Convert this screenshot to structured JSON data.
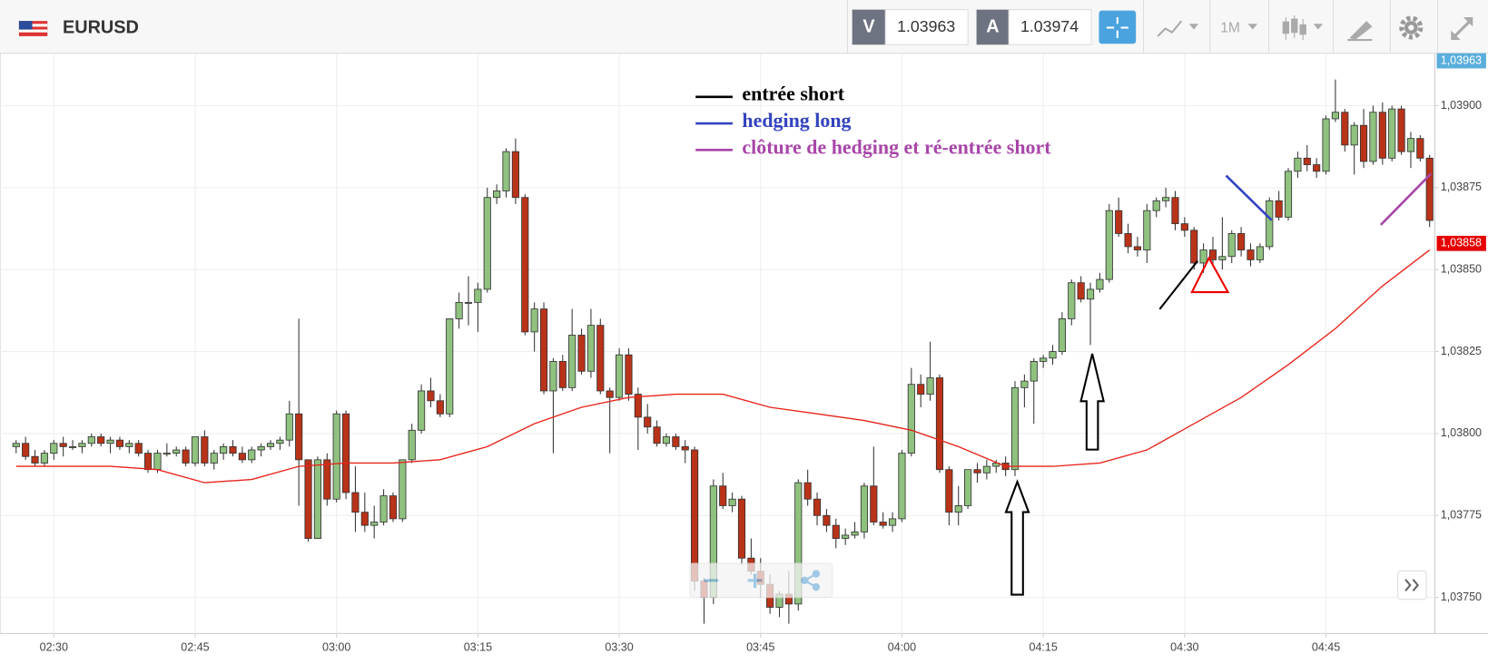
{
  "toolbar": {
    "symbol": "EURUSD",
    "sell_label": "V",
    "sell_price": "1.03963",
    "buy_label": "A",
    "buy_price": "1.03974",
    "timeframe": "1M"
  },
  "chart_data": {
    "type": "candlestick",
    "up_color": "#8fc17f",
    "down_color": "#b93319",
    "categories": [
      "02:26",
      "02:27",
      "02:28",
      "02:29",
      "02:30",
      "02:31",
      "02:32",
      "02:33",
      "02:34",
      "02:35",
      "02:36",
      "02:37",
      "02:38",
      "02:39",
      "02:40",
      "02:41",
      "02:42",
      "02:43",
      "02:44",
      "02:45",
      "02:46",
      "02:47",
      "02:48",
      "02:49",
      "02:50",
      "02:51",
      "02:52",
      "02:53",
      "02:54",
      "02:55",
      "02:56",
      "02:57",
      "02:58",
      "02:59",
      "03:00",
      "03:01",
      "03:02",
      "03:03",
      "03:04",
      "03:05",
      "03:06",
      "03:07",
      "03:08",
      "03:09",
      "03:10",
      "03:11",
      "03:12",
      "03:13",
      "03:14",
      "03:15",
      "03:16",
      "03:17",
      "03:18",
      "03:19",
      "03:20",
      "03:21",
      "03:22",
      "03:23",
      "03:24",
      "03:25",
      "03:26",
      "03:27",
      "03:28",
      "03:29",
      "03:30",
      "03:31",
      "03:32",
      "03:33",
      "03:34",
      "03:35",
      "03:36",
      "03:37",
      "03:38",
      "03:39",
      "03:40",
      "03:41",
      "03:42",
      "03:43",
      "03:44",
      "03:45",
      "03:46",
      "03:47",
      "03:48",
      "03:49",
      "03:50",
      "03:51",
      "03:52",
      "03:53",
      "03:54",
      "03:55",
      "03:56",
      "03:57",
      "03:58",
      "03:59",
      "04:00",
      "04:01",
      "04:02",
      "04:03",
      "04:04",
      "04:05",
      "04:06",
      "04:07",
      "04:08",
      "04:09",
      "04:10",
      "04:11",
      "04:12",
      "04:13",
      "04:14",
      "04:15",
      "04:16",
      "04:17",
      "04:18",
      "04:19",
      "04:20",
      "04:21",
      "04:22",
      "04:23",
      "04:24",
      "04:25",
      "04:26",
      "04:27",
      "04:28",
      "04:29",
      "04:30",
      "04:31",
      "04:32",
      "04:33",
      "04:34",
      "04:35",
      "04:36",
      "04:37",
      "04:38",
      "04:39",
      "04:40",
      "04:41",
      "04:42",
      "04:43",
      "04:44",
      "04:45",
      "04:46",
      "04:47",
      "04:48",
      "04:49",
      "04:50",
      "04:51",
      "04:52",
      "04:53",
      "04:54",
      "04:55",
      "04:56"
    ],
    "candles": [
      [
        1.03796,
        1.03798,
        1.03794,
        1.03797
      ],
      [
        1.03797,
        1.03799,
        1.03792,
        1.03793
      ],
      [
        1.03793,
        1.03795,
        1.0379,
        1.03791
      ],
      [
        1.03791,
        1.03795,
        1.0379,
        1.03794
      ],
      [
        1.03794,
        1.03798,
        1.03792,
        1.03797
      ],
      [
        1.03797,
        1.03799,
        1.03793,
        1.03796
      ],
      [
        1.03796,
        1.03798,
        1.03795,
        1.03796
      ],
      [
        1.03796,
        1.03798,
        1.03794,
        1.03797
      ],
      [
        1.03797,
        1.038,
        1.03796,
        1.03799
      ],
      [
        1.03799,
        1.038,
        1.03796,
        1.03797
      ],
      [
        1.03797,
        1.03799,
        1.03794,
        1.03798
      ],
      [
        1.03798,
        1.03799,
        1.03795,
        1.03796
      ],
      [
        1.03796,
        1.03798,
        1.03794,
        1.03797
      ],
      [
        1.03797,
        1.03798,
        1.03793,
        1.03794
      ],
      [
        1.03794,
        1.03795,
        1.03788,
        1.03789
      ],
      [
        1.03789,
        1.03795,
        1.03788,
        1.03794
      ],
      [
        1.03794,
        1.03797,
        1.03793,
        1.03794
      ],
      [
        1.03794,
        1.03796,
        1.03793,
        1.03795
      ],
      [
        1.03795,
        1.03796,
        1.0379,
        1.03791
      ],
      [
        1.03791,
        1.03799,
        1.0379,
        1.03799
      ],
      [
        1.03799,
        1.03801,
        1.0379,
        1.03791
      ],
      [
        1.03791,
        1.03795,
        1.03789,
        1.03794
      ],
      [
        1.03794,
        1.03797,
        1.03792,
        1.03796
      ],
      [
        1.03796,
        1.03798,
        1.03793,
        1.03794
      ],
      [
        1.03794,
        1.03796,
        1.03791,
        1.03792
      ],
      [
        1.03792,
        1.03796,
        1.03791,
        1.03795
      ],
      [
        1.03795,
        1.03797,
        1.03793,
        1.03796
      ],
      [
        1.03796,
        1.03798,
        1.03795,
        1.03797
      ],
      [
        1.03797,
        1.03799,
        1.03795,
        1.03798
      ],
      [
        1.03798,
        1.0381,
        1.03796,
        1.03806
      ],
      [
        1.03806,
        1.03835,
        1.03778,
        1.03792
      ],
      [
        1.03792,
        1.03792,
        1.03767,
        1.03768
      ],
      [
        1.03768,
        1.03793,
        1.03768,
        1.03792
      ],
      [
        1.03792,
        1.03794,
        1.03778,
        1.0378
      ],
      [
        1.0378,
        1.03807,
        1.03779,
        1.03806
      ],
      [
        1.03806,
        1.03807,
        1.0378,
        1.03782
      ],
      [
        1.03782,
        1.0379,
        1.0377,
        1.03776
      ],
      [
        1.03776,
        1.03782,
        1.0377,
        1.03772
      ],
      [
        1.03772,
        1.03778,
        1.03768,
        1.03773
      ],
      [
        1.03773,
        1.03783,
        1.03772,
        1.03781
      ],
      [
        1.03781,
        1.03782,
        1.03773,
        1.03774
      ],
      [
        1.03774,
        1.03792,
        1.03773,
        1.03792
      ],
      [
        1.03792,
        1.03803,
        1.03791,
        1.03801
      ],
      [
        1.03801,
        1.03815,
        1.038,
        1.03813
      ],
      [
        1.03813,
        1.03817,
        1.03808,
        1.0381
      ],
      [
        1.0381,
        1.03812,
        1.03805,
        1.03806
      ],
      [
        1.03806,
        1.03835,
        1.03805,
        1.03835
      ],
      [
        1.03835,
        1.03843,
        1.03832,
        1.0384
      ],
      [
        1.0384,
        1.03848,
        1.03833,
        1.0384
      ],
      [
        1.0384,
        1.03846,
        1.03831,
        1.03844
      ],
      [
        1.03844,
        1.03875,
        1.03843,
        1.03872
      ],
      [
        1.03872,
        1.03876,
        1.0387,
        1.03874
      ],
      [
        1.03874,
        1.03887,
        1.03872,
        1.03886
      ],
      [
        1.03886,
        1.0389,
        1.0387,
        1.03872
      ],
      [
        1.03872,
        1.03873,
        1.0383,
        1.03831
      ],
      [
        1.03831,
        1.0384,
        1.03825,
        1.03838
      ],
      [
        1.03838,
        1.0384,
        1.03812,
        1.03813
      ],
      [
        1.03813,
        1.03823,
        1.03794,
        1.03822
      ],
      [
        1.03822,
        1.03824,
        1.03813,
        1.03814
      ],
      [
        1.03814,
        1.03838,
        1.03813,
        1.0383
      ],
      [
        1.0383,
        1.03832,
        1.03818,
        1.03819
      ],
      [
        1.03819,
        1.03838,
        1.03817,
        1.03833
      ],
      [
        1.03833,
        1.03835,
        1.03812,
        1.03813
      ],
      [
        1.03813,
        1.03814,
        1.03794,
        1.03811
      ],
      [
        1.03811,
        1.03826,
        1.0381,
        1.03824
      ],
      [
        1.03824,
        1.03826,
        1.0381,
        1.03812
      ],
      [
        1.03812,
        1.03814,
        1.03795,
        1.03805
      ],
      [
        1.03805,
        1.03809,
        1.038,
        1.03802
      ],
      [
        1.03802,
        1.03804,
        1.03796,
        1.03797
      ],
      [
        1.03797,
        1.038,
        1.03796,
        1.03799
      ],
      [
        1.03799,
        1.038,
        1.03795,
        1.03796
      ],
      [
        1.03796,
        1.03798,
        1.03791,
        1.03795
      ],
      [
        1.03795,
        1.03796,
        1.03752,
        1.03755
      ],
      [
        1.03755,
        1.03756,
        1.03742,
        1.0375
      ],
      [
        1.0375,
        1.03786,
        1.03748,
        1.03784
      ],
      [
        1.03784,
        1.03788,
        1.03777,
        1.03778
      ],
      [
        1.03778,
        1.03782,
        1.03776,
        1.0378
      ],
      [
        1.0378,
        1.03781,
        1.0376,
        1.03762
      ],
      [
        1.03762,
        1.03768,
        1.03757,
        1.03758
      ],
      [
        1.03758,
        1.03762,
        1.0375,
        1.03754
      ],
      [
        1.03754,
        1.03757,
        1.03745,
        1.03747
      ],
      [
        1.03747,
        1.03752,
        1.03744,
        1.03751
      ],
      [
        1.03751,
        1.03758,
        1.03742,
        1.03748
      ],
      [
        1.03748,
        1.03786,
        1.03746,
        1.03785
      ],
      [
        1.03785,
        1.03789,
        1.03778,
        1.0378
      ],
      [
        1.0378,
        1.03782,
        1.03772,
        1.03775
      ],
      [
        1.03775,
        1.03777,
        1.0377,
        1.03772
      ],
      [
        1.03772,
        1.03774,
        1.03765,
        1.03768
      ],
      [
        1.03768,
        1.03771,
        1.03766,
        1.03769
      ],
      [
        1.03769,
        1.03773,
        1.03768,
        1.0377
      ],
      [
        1.0377,
        1.03785,
        1.03768,
        1.03784
      ],
      [
        1.03784,
        1.03796,
        1.03772,
        1.03773
      ],
      [
        1.03773,
        1.03776,
        1.03771,
        1.03772
      ],
      [
        1.03772,
        1.03776,
        1.0377,
        1.03774
      ],
      [
        1.03774,
        1.03795,
        1.03773,
        1.03794
      ],
      [
        1.03794,
        1.0382,
        1.03793,
        1.03815
      ],
      [
        1.03815,
        1.03818,
        1.03808,
        1.03812
      ],
      [
        1.03812,
        1.03828,
        1.0381,
        1.03817
      ],
      [
        1.03817,
        1.03818,
        1.03788,
        1.03789
      ],
      [
        1.03789,
        1.0379,
        1.03772,
        1.03776
      ],
      [
        1.03776,
        1.03784,
        1.03772,
        1.03778
      ],
      [
        1.03778,
        1.03789,
        1.03777,
        1.03789
      ],
      [
        1.03789,
        1.03791,
        1.03785,
        1.03788
      ],
      [
        1.03788,
        1.03792,
        1.03786,
        1.0379
      ],
      [
        1.0379,
        1.03792,
        1.03788,
        1.03791
      ],
      [
        1.03791,
        1.03793,
        1.03787,
        1.03789
      ],
      [
        1.03789,
        1.03816,
        1.03787,
        1.03814
      ],
      [
        1.03814,
        1.03818,
        1.03808,
        1.03816
      ],
      [
        1.03816,
        1.03823,
        1.03803,
        1.03822
      ],
      [
        1.03822,
        1.03824,
        1.0382,
        1.03823
      ],
      [
        1.03823,
        1.03827,
        1.03821,
        1.03825
      ],
      [
        1.03825,
        1.03837,
        1.03824,
        1.03835
      ],
      [
        1.03835,
        1.03847,
        1.03833,
        1.03846
      ],
      [
        1.03846,
        1.03848,
        1.0384,
        1.03841
      ],
      [
        1.03841,
        1.03846,
        1.03827,
        1.03844
      ],
      [
        1.03844,
        1.03849,
        1.03843,
        1.03847
      ],
      [
        1.03847,
        1.0387,
        1.03846,
        1.03868
      ],
      [
        1.03868,
        1.03872,
        1.0386,
        1.03861
      ],
      [
        1.03861,
        1.03864,
        1.03855,
        1.03857
      ],
      [
        1.03857,
        1.0386,
        1.03854,
        1.03856
      ],
      [
        1.03856,
        1.0387,
        1.03852,
        1.03868
      ],
      [
        1.03868,
        1.03872,
        1.03866,
        1.03871
      ],
      [
        1.03871,
        1.03875,
        1.03869,
        1.03872
      ],
      [
        1.03872,
        1.03874,
        1.03862,
        1.03864
      ],
      [
        1.03864,
        1.03866,
        1.0386,
        1.03862
      ],
      [
        1.03862,
        1.03863,
        1.0385,
        1.03852
      ],
      [
        1.03852,
        1.03858,
        1.03849,
        1.03856
      ],
      [
        1.03856,
        1.0386,
        1.03851,
        1.03853
      ],
      [
        1.03853,
        1.03866,
        1.0385,
        1.03854
      ],
      [
        1.03854,
        1.03862,
        1.03852,
        1.03861
      ],
      [
        1.03861,
        1.03863,
        1.03854,
        1.03856
      ],
      [
        1.03856,
        1.03858,
        1.03851,
        1.03853
      ],
      [
        1.03853,
        1.03858,
        1.03852,
        1.03857
      ],
      [
        1.03857,
        1.03872,
        1.03856,
        1.03871
      ],
      [
        1.03871,
        1.03874,
        1.03865,
        1.03866
      ],
      [
        1.03866,
        1.03881,
        1.03865,
        1.0388
      ],
      [
        1.0388,
        1.03886,
        1.03878,
        1.03884
      ],
      [
        1.03884,
        1.03888,
        1.0388,
        1.03882
      ],
      [
        1.03882,
        1.03884,
        1.03878,
        1.0388
      ],
      [
        1.0388,
        1.03897,
        1.03879,
        1.03896
      ],
      [
        1.03896,
        1.03908,
        1.03895,
        1.03898
      ],
      [
        1.03898,
        1.03899,
        1.03886,
        1.03888
      ],
      [
        1.03888,
        1.03895,
        1.03879,
        1.03894
      ],
      [
        1.03894,
        1.03899,
        1.03881,
        1.03883
      ],
      [
        1.03883,
        1.039,
        1.03882,
        1.03898
      ],
      [
        1.03898,
        1.03901,
        1.03882,
        1.03884
      ],
      [
        1.03884,
        1.039,
        1.03883,
        1.03899
      ],
      [
        1.03899,
        1.039,
        1.03885,
        1.03886
      ],
      [
        1.03886,
        1.03892,
        1.03881,
        1.0389
      ],
      [
        1.0389,
        1.03891,
        1.03883,
        1.03884
      ],
      [
        1.03884,
        1.03885,
        1.03863,
        1.03865
      ]
    ],
    "moving_average": {
      "color": "#e8231a",
      "x": [
        "02:26",
        "02:31",
        "02:36",
        "02:41",
        "02:46",
        "02:51",
        "02:56",
        "03:01",
        "03:06",
        "03:11",
        "03:16",
        "03:21",
        "03:26",
        "03:31",
        "03:36",
        "03:41",
        "03:46",
        "03:51",
        "03:56",
        "04:01",
        "04:06",
        "04:11",
        "04:16",
        "04:21",
        "04:26",
        "04:31",
        "04:36",
        "04:41",
        "04:46",
        "04:51",
        "04:56"
      ],
      "values": [
        1.0379,
        1.0379,
        1.0379,
        1.03789,
        1.03785,
        1.03786,
        1.0379,
        1.03791,
        1.03791,
        1.03792,
        1.03796,
        1.03803,
        1.03808,
        1.03811,
        1.03812,
        1.03812,
        1.03808,
        1.03806,
        1.03804,
        1.03801,
        1.03796,
        1.0379,
        1.0379,
        1.03791,
        1.03795,
        1.03803,
        1.03811,
        1.03821,
        1.03832,
        1.03845,
        1.03856
      ]
    },
    "ylim": [
      1.03739,
      1.03916
    ],
    "yticks": [
      {
        "value": 1.0375,
        "label": "1,03750"
      },
      {
        "value": 1.03775,
        "label": "1,03775"
      },
      {
        "value": 1.038,
        "label": "1,03800"
      },
      {
        "value": 1.03825,
        "label": "1,03825"
      },
      {
        "value": 1.0385,
        "label": "1,03850"
      },
      {
        "value": 1.03875,
        "label": "1,03875"
      },
      {
        "value": 1.039,
        "label": "1,03900"
      }
    ],
    "xticks": [
      "02:30",
      "02:45",
      "03:00",
      "03:15",
      "03:30",
      "03:45",
      "04:00",
      "04:15",
      "04:30",
      "04:45"
    ],
    "grid": true,
    "price_tags": [
      {
        "value": 1.03963,
        "label": "1,03963",
        "color": "#5aaedc"
      },
      {
        "value": 1.03858,
        "label": "1,03858",
        "color": "#e60000"
      }
    ],
    "annotations": [
      {
        "text": "entrée short",
        "color": "#000000"
      },
      {
        "text": "hedging long",
        "color": "#3343c0"
      },
      {
        "text": "clôture de hedging et ré-entrée short",
        "color": "#a846a8"
      }
    ]
  }
}
